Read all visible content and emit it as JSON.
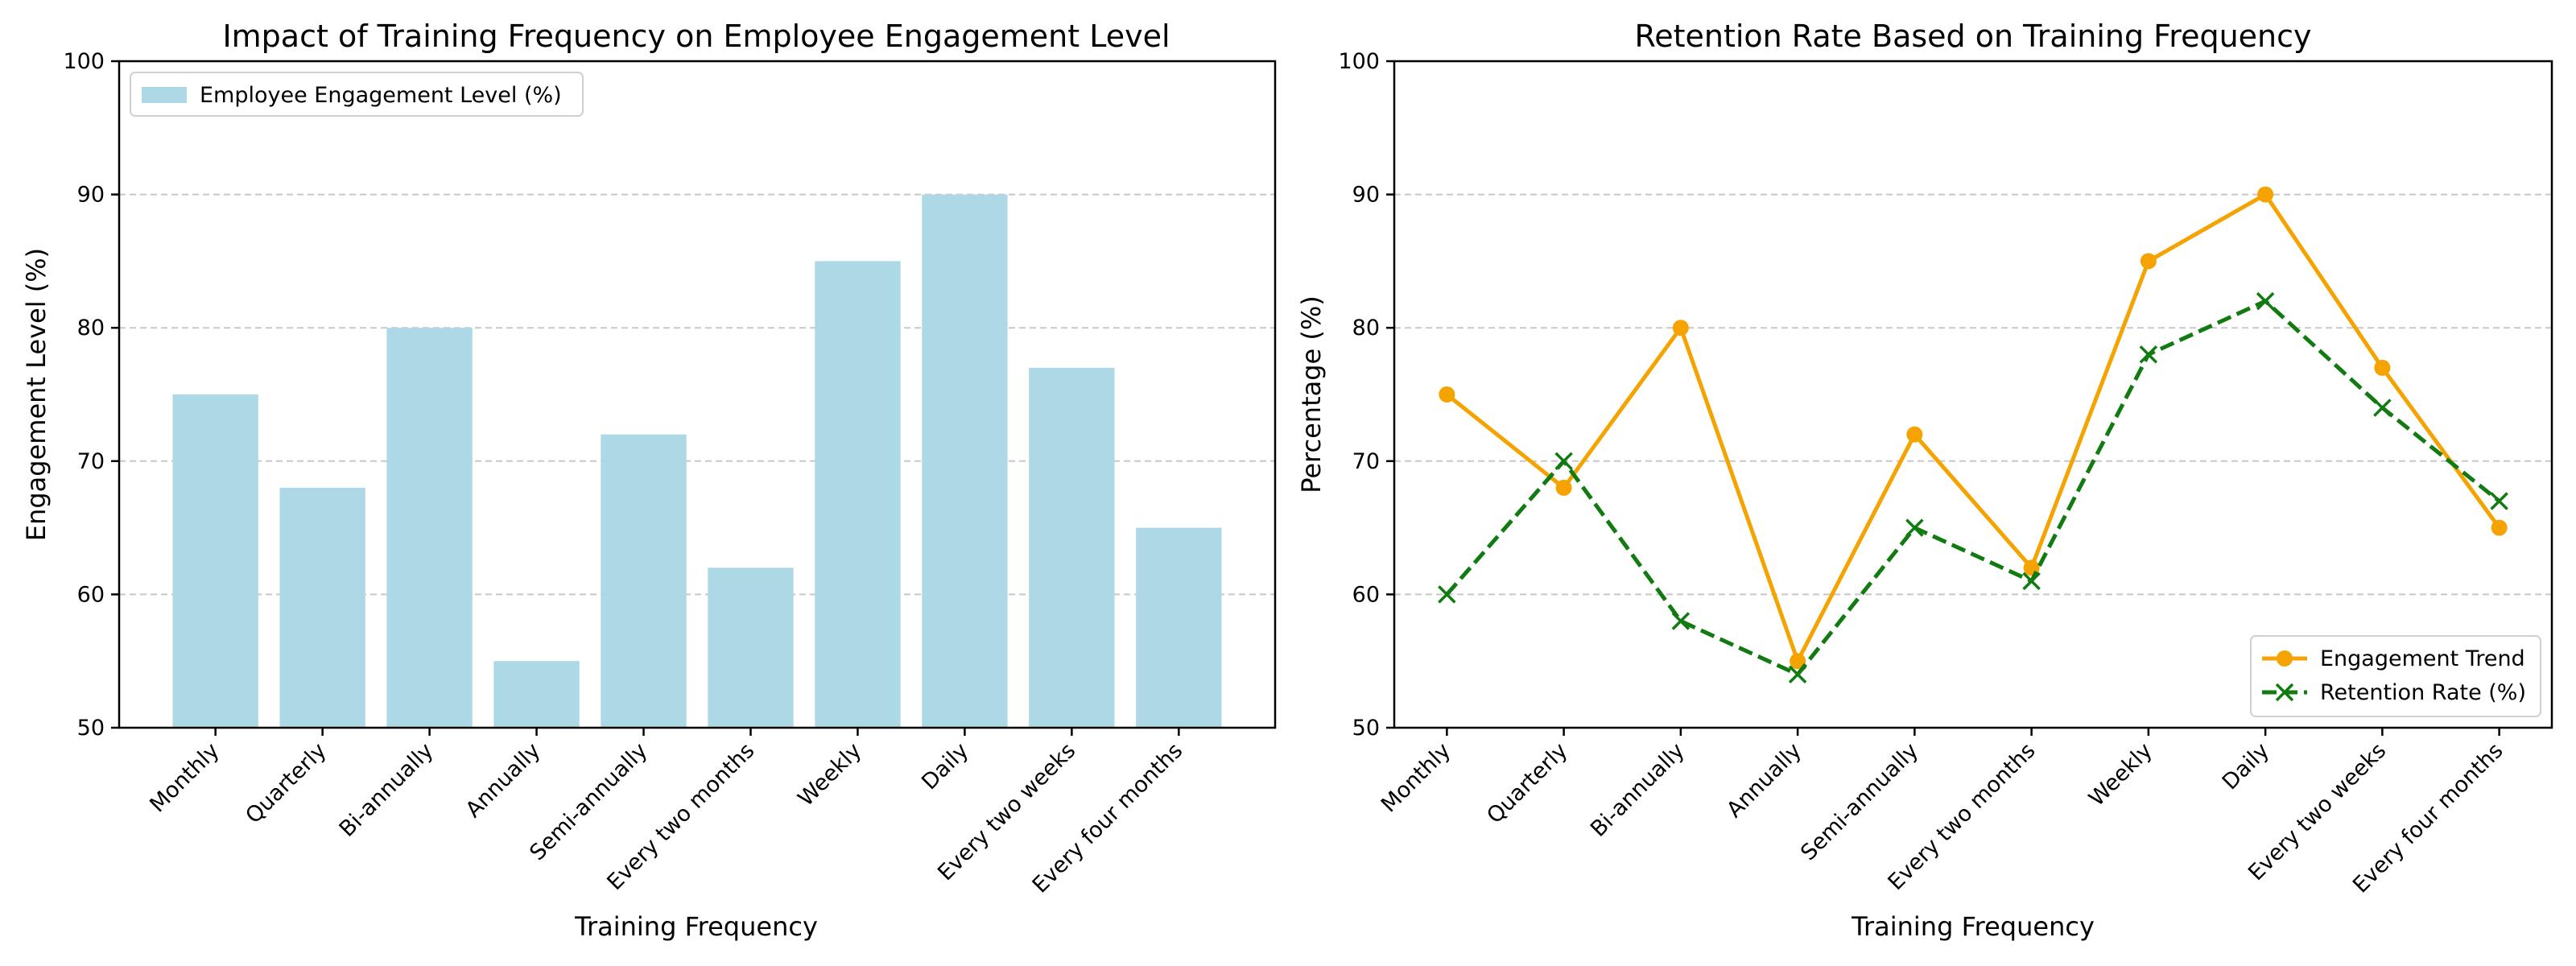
{
  "chart_data": [
    {
      "type": "bar",
      "title": "Impact of Training Frequency on Employee Engagement Level",
      "xlabel": "Training Frequency",
      "ylabel": "Engagement Level (%)",
      "ylim": [
        50,
        100
      ],
      "yticks": [
        50,
        60,
        70,
        80,
        90,
        100
      ],
      "grid": "horizontal dashed",
      "legend_position": "upper-left",
      "categories": [
        "Monthly",
        "Quarterly",
        "Bi-annually",
        "Annually",
        "Semi-annually",
        "Every two months",
        "Weekly",
        "Daily",
        "Every two weeks",
        "Every four months"
      ],
      "series": [
        {
          "name": "Employee Engagement Level (%)",
          "color": "#add8e6",
          "values": [
            75,
            68,
            80,
            55,
            72,
            62,
            85,
            90,
            77,
            65
          ]
        }
      ]
    },
    {
      "type": "line",
      "title": "Retention Rate Based on Training Frequency",
      "xlabel": "Training Frequency",
      "ylabel": "Percentage (%)",
      "ylim": [
        50,
        100
      ],
      "yticks": [
        50,
        60,
        70,
        80,
        90,
        100
      ],
      "grid": "horizontal dashed",
      "legend_position": "lower-right",
      "categories": [
        "Monthly",
        "Quarterly",
        "Bi-annually",
        "Annually",
        "Semi-annually",
        "Every two months",
        "Weekly",
        "Daily",
        "Every two weeks",
        "Every four months"
      ],
      "series": [
        {
          "name": "Engagement Trend",
          "color": "#f5a300",
          "marker": "circle",
          "linestyle": "solid",
          "values": [
            75,
            68,
            80,
            55,
            72,
            62,
            85,
            90,
            77,
            65
          ]
        },
        {
          "name": "Retention Rate (%)",
          "color": "#117a11",
          "marker": "x",
          "linestyle": "dashed",
          "values": [
            60,
            70,
            58,
            54,
            65,
            61,
            78,
            82,
            74,
            67
          ]
        }
      ]
    }
  ]
}
